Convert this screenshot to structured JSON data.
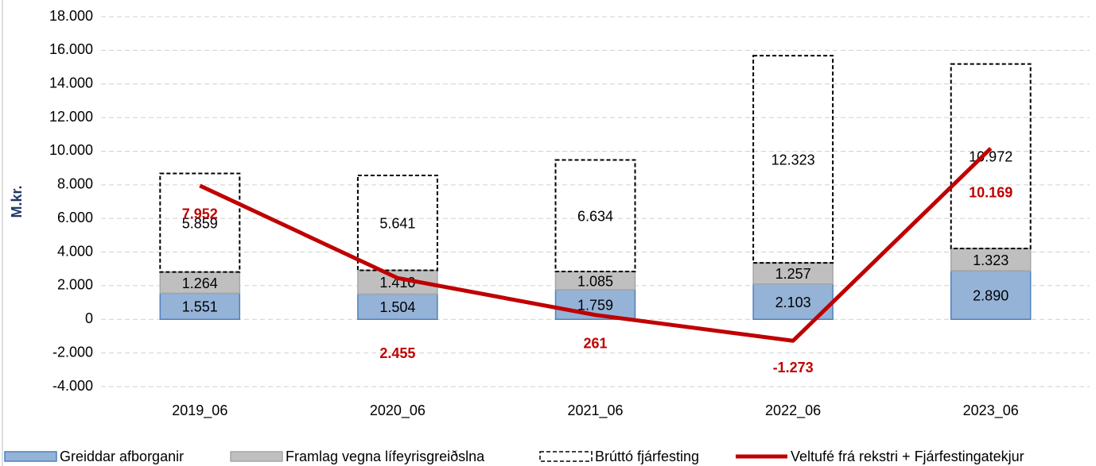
{
  "chart_data": {
    "type": "bar",
    "y_label": "M.kr.",
    "categories": [
      "2019_06",
      "2020_06",
      "2021_06",
      "2022_06",
      "2023_06"
    ],
    "ylim": [
      -4000,
      18000
    ],
    "yticks": [
      {
        "value": -4000,
        "label": "-4.000"
      },
      {
        "value": -2000,
        "label": "-2.000"
      },
      0,
      {
        "value": 2000,
        "label": "2.000"
      },
      {
        "value": 4000,
        "label": "4.000"
      },
      {
        "value": 6000,
        "label": "6.000"
      },
      {
        "value": 8000,
        "label": "8.000"
      },
      {
        "value": 10000,
        "label": "10.000"
      },
      {
        "value": 12000,
        "label": "12.000"
      },
      {
        "value": 14000,
        "label": "14.000"
      },
      {
        "value": 16000,
        "label": "16.000"
      },
      {
        "value": 18000,
        "label": "18.000"
      }
    ],
    "grid": true,
    "legend": "bottom",
    "series": [
      {
        "name": "Greiddar afborganir",
        "kind": "bar",
        "color": "#95b3d7",
        "stroke": "#4f81bd",
        "values": [
          1551,
          1504,
          1759,
          2103,
          2890
        ],
        "value_labels": [
          "1.551",
          "1.504",
          "1.759",
          "2.103",
          "2.890"
        ]
      },
      {
        "name": "Framlag vegna lífeyrisgreiðslna",
        "kind": "bar",
        "color": "#bfbfbf",
        "stroke": "#a6a6a6",
        "values": [
          1264,
          1410,
          1085,
          1257,
          1323
        ],
        "value_labels": [
          "1.264",
          "1.410",
          "1.085",
          "1.257",
          "1.323"
        ]
      },
      {
        "name": "Brúttó fjárfesting",
        "kind": "bar",
        "color": "none",
        "stroke": "#000000",
        "dashed": true,
        "values": [
          5859,
          5641,
          6634,
          12323,
          10972
        ],
        "value_labels": [
          "5.859",
          "5.641",
          "6.634",
          "12.323",
          "10.972"
        ]
      },
      {
        "name": "Veltufé frá rekstri + Fjárfestingatekjur",
        "kind": "line",
        "color": "#c00000",
        "values": [
          7952,
          2455,
          261,
          -1273,
          10169
        ],
        "value_labels": [
          "7.952",
          "2.455",
          "261",
          "-1.273",
          "10.169"
        ]
      }
    ]
  }
}
